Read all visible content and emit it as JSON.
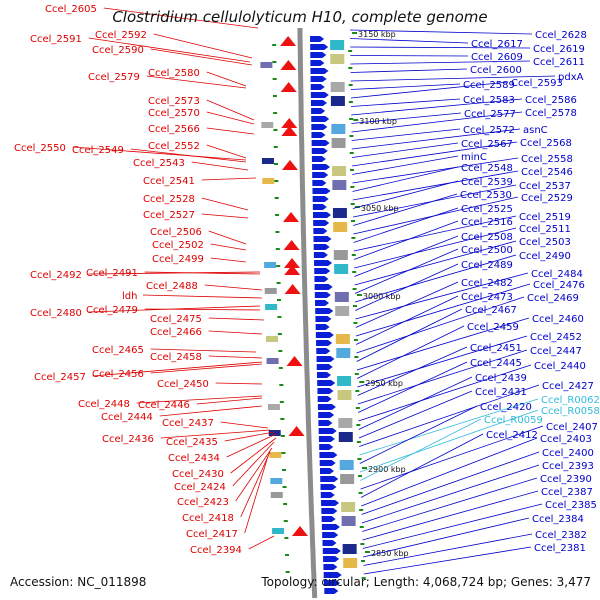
{
  "map": {
    "title": "Clostridium cellulolyticum H10, complete genome",
    "accession_text": "Accession: NC_011898",
    "summary_text": "Topology: circular; Length: 4,068,724 bp; Genes: 3,477"
  },
  "colors": {
    "left_labels": "#dd0000",
    "right_labels": "#0000cc",
    "rna_labels": "#33bbdd",
    "backbone": "#8c8c8c",
    "forward_arrows": "#0b1fd6",
    "reverse_arrows": "#ee1111",
    "ticks": "#1a8a1a"
  },
  "ticks": [
    "3150 kbp",
    "3100 kbp",
    "3050 kbp",
    "3000 kbp",
    "2950 kbp",
    "2900 kbp",
    "2850 kbp"
  ],
  "left_labels": [
    "Ccel_2605",
    "Ccel_2592",
    "Ccel_2591",
    "Ccel_2590",
    "Ccel_2580",
    "Ccel_2579",
    "Ccel_2573",
    "Ccel_2570",
    "Ccel_2566",
    "Ccel_2552",
    "Ccel_2550",
    "Ccel_2549",
    "Ccel_2543",
    "Ccel_2541",
    "Ccel_2528",
    "Ccel_2527",
    "Ccel_2506",
    "Ccel_2502",
    "Ccel_2499",
    "Ccel_2492",
    "Ccel_2491",
    "Ccel_2488",
    "ldh",
    "Ccel_2480",
    "Ccel_2479",
    "Ccel_2475",
    "Ccel_2466",
    "Ccel_2465",
    "Ccel_2458",
    "Ccel_2457",
    "Ccel_2456",
    "Ccel_2450",
    "Ccel_2448",
    "Ccel_2446",
    "Ccel_2444",
    "Ccel_2437",
    "Ccel_2436",
    "Ccel_2435",
    "Ccel_2434",
    "Ccel_2430",
    "Ccel_2424",
    "Ccel_2423",
    "Ccel_2418",
    "Ccel_2417",
    "Ccel_2394"
  ],
  "right_labels": [
    "Ccel_2628",
    "Ccel_2617",
    "Ccel_2619",
    "Ccel_2609",
    "Ccel_2611",
    "Ccel_2600",
    "pdxA",
    "Ccel_2589",
    "Ccel_2593",
    "Ccel_2583",
    "Ccel_2586",
    "Ccel_2577",
    "Ccel_2578",
    "Ccel_2572",
    "asnC",
    "Ccel_2567",
    "Ccel_2568",
    "minC",
    "Ccel_2558",
    "Ccel_2548",
    "Ccel_2546",
    "Ccel_2539",
    "Ccel_2537",
    "Ccel_2530",
    "Ccel_2529",
    "Ccel_2525",
    "Ccel_2519",
    "Ccel_2516",
    "Ccel_2511",
    "Ccel_2508",
    "Ccel_2503",
    "Ccel_2500",
    "Ccel_2490",
    "Ccel_2489",
    "Ccel_2484",
    "Ccel_2482",
    "Ccel_2476",
    "Ccel_2473",
    "Ccel_2469",
    "Ccel_2467",
    "Ccel_2460",
    "Ccel_2459",
    "Ccel_2452",
    "Ccel_2451",
    "Ccel_2447",
    "Ccel_2445",
    "Ccel_2440",
    "Ccel_2439",
    "Ccel_2431",
    "Ccel_2427",
    "Ccel_R0062",
    "Ccel_2420",
    "Ccel_R0058",
    "Ccel_R0059",
    "Ccel_2407",
    "Ccel_2412",
    "Ccel_2403",
    "Ccel_2400",
    "Ccel_2393",
    "Ccel_2390",
    "Ccel_2387",
    "Ccel_2385",
    "Ccel_2384",
    "Ccel_2382",
    "Ccel_2381"
  ],
  "rna_labels": [
    "Ccel_R0062",
    "Ccel_R0058",
    "Ccel_R0059"
  ]
}
